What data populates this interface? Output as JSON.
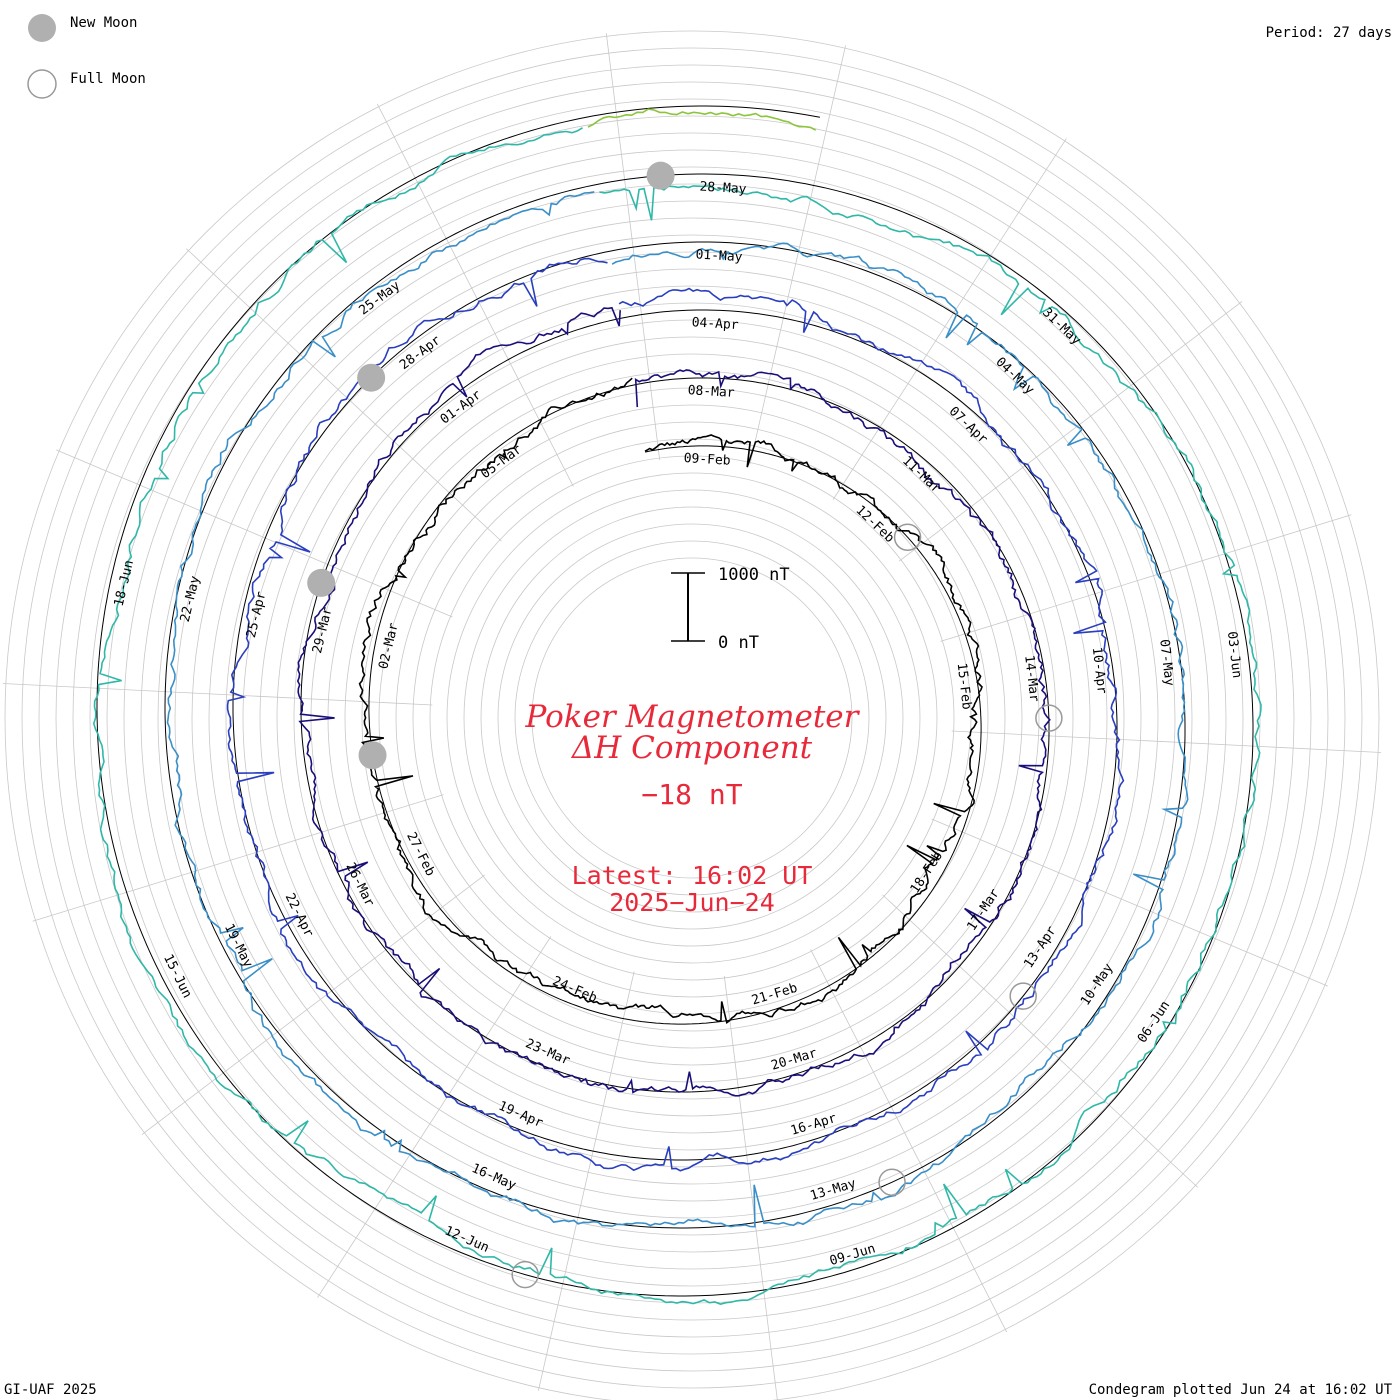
{
  "legend": {
    "new_moon_label": "New Moon",
    "full_moon_label": "Full Moon"
  },
  "period_label": "Period: 27 days",
  "footer": {
    "credit": "GI-UAF 2025",
    "plotted": "Condegram plotted Jun 24 at 16:02 UT"
  },
  "center": {
    "title_line1": "Poker Magnetometer",
    "title_line2": "ΔH Component",
    "current_value": "−18 nT",
    "latest_line1": "Latest: 16:02 UT",
    "latest_line2": "2025−Jun−24",
    "scale_top": "1000 nT",
    "scale_bottom": "0 nT"
  },
  "colors": {
    "title": "#e8293a",
    "moon_fill": "#b0b0b0",
    "grid": "#c8c8c8",
    "baseline": "#000000",
    "text": "#000000"
  },
  "chart_data": {
    "type": "line",
    "period_days": 27,
    "start_date": "2025-02-08",
    "end": "2025-06-24 16:02 UT",
    "date_labels": [
      "09-Feb",
      "12-Feb",
      "15-Feb",
      "18-Feb",
      "21-Feb",
      "24-Feb",
      "27-Feb",
      "02-Mar",
      "05-Mar",
      "08-Mar",
      "11-Mar",
      "14-Mar",
      "17-Mar",
      "20-Mar",
      "23-Mar",
      "26-Mar",
      "29-Mar",
      "01-Apr",
      "04-Apr",
      "07-Apr",
      "10-Apr",
      "13-Apr",
      "16-Apr",
      "19-Apr",
      "22-Apr",
      "25-Apr",
      "28-Apr",
      "01-May",
      "04-May",
      "07-May",
      "10-May",
      "13-May",
      "16-May",
      "19-May",
      "22-May",
      "25-May",
      "28-May",
      "31-May",
      "03-Jun",
      "06-Jun",
      "09-Jun",
      "12-Jun",
      "15-Jun",
      "18-Jun"
    ],
    "new_moons": [
      "2025-02-28",
      "2025-03-29",
      "2025-04-27",
      "2025-05-27"
    ],
    "full_moons": [
      "2025-02-12",
      "2025-03-14",
      "2025-04-13",
      "2025-05-12",
      "2025-06-11"
    ],
    "series_colors": [
      "#000000",
      "#1a0f7a",
      "#2a3fc0",
      "#3a8fc8",
      "#2fb8a8",
      "#8cc43c",
      "#b8a018",
      "#c06a10",
      "#c02a10"
    ],
    "yscale_nT": [
      0,
      1000
    ]
  }
}
